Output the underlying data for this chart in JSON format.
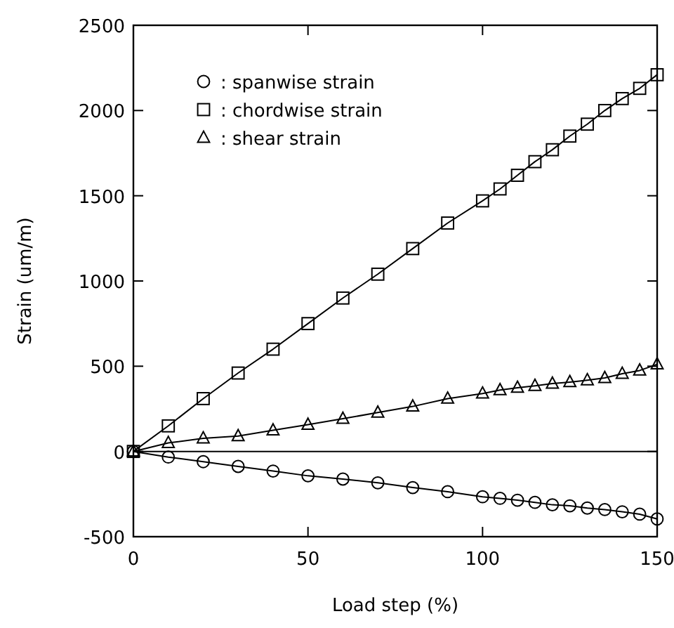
{
  "chart_data": {
    "type": "line",
    "xlabel": "Load step (%)",
    "ylabel": "Strain (um/m)",
    "x": [
      0,
      10,
      20,
      30,
      40,
      50,
      60,
      70,
      80,
      90,
      100,
      105,
      110,
      115,
      120,
      125,
      130,
      135,
      140,
      145,
      150
    ],
    "xlim": [
      0,
      150
    ],
    "xticks": [
      0,
      50,
      100,
      150
    ],
    "ylim": [
      -500,
      2500
    ],
    "yticks": [
      -500,
      0,
      500,
      1000,
      1500,
      2000,
      2500
    ],
    "grid": false,
    "legend": "top left",
    "line_style": "solid",
    "ref_lines": [
      {
        "axis": "y",
        "value": 0
      }
    ],
    "series": [
      {
        "name": ": spanwise strain",
        "color": "#000000",
        "marker": "circle",
        "values": [
          0,
          -33,
          -60,
          -88,
          -115,
          -143,
          -162,
          -184,
          -212,
          -236,
          -266,
          -275,
          -286,
          -299,
          -313,
          -319,
          -332,
          -341,
          -354,
          -368,
          -396
        ]
      },
      {
        "name": ": chordwise strain",
        "color": "#000000",
        "marker": "square",
        "values": [
          0,
          150,
          310,
          460,
          600,
          750,
          900,
          1040,
          1190,
          1340,
          1470,
          1540,
          1620,
          1700,
          1770,
          1850,
          1920,
          2000,
          2070,
          2130,
          2210
        ]
      },
      {
        "name": ": shear strain",
        "color": "#000000",
        "marker": "triangle",
        "values": [
          0,
          50,
          77,
          90,
          124,
          157,
          192,
          228,
          264,
          310,
          340,
          360,
          374,
          385,
          398,
          407,
          418,
          431,
          456,
          475,
          511
        ]
      }
    ]
  }
}
